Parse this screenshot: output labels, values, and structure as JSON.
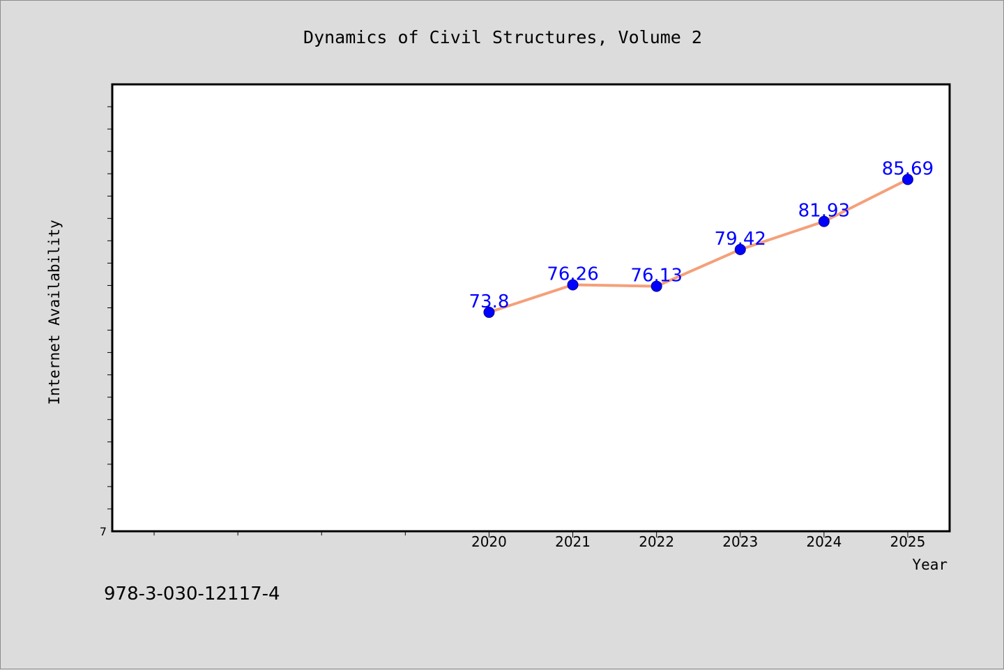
{
  "chart_data": {
    "type": "line",
    "title": "Dynamics of Civil Structures, Volume 2",
    "xlabel": "Year",
    "ylabel": "Internet Availability",
    "x": [
      2020,
      2021,
      2022,
      2023,
      2024,
      2025
    ],
    "values": [
      73.8,
      76.26,
      76.13,
      79.42,
      81.93,
      85.69
    ],
    "data_labels": [
      "73.8",
      "76.26",
      "76.13",
      "79.42",
      "81.93",
      "85.69"
    ],
    "x_ticks": [
      "2020",
      "2021",
      "2022",
      "2023",
      "2024",
      "2025"
    ],
    "y_tick_label": "7",
    "xlim": [
      2015.5,
      2025.5
    ],
    "ylim": [
      54.2,
      94.2
    ],
    "grid": false,
    "colors": {
      "line": "#f4a07a",
      "marker": "#0000ff",
      "label": "#0000ff",
      "plot_bg": "#ffffff",
      "page_bg": "#dcdcdc"
    }
  },
  "footer": {
    "isbn": "978-3-030-12117-4"
  }
}
